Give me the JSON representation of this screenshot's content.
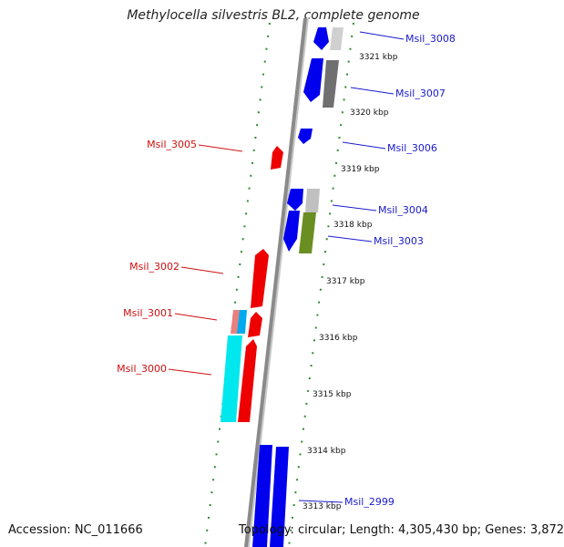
{
  "title": "Methylocella silvestris BL2, complete genome",
  "accession": "Accession: NC_011666",
  "summary": "Topology: circular; Length: 4,305,430 bp; Genes: 3,872",
  "colors": {
    "backbone": "#8a8a8a",
    "forward_strand": "#0000ee",
    "reverse_strand": "#ee0000",
    "forward_label": "#1a1acc",
    "reverse_label": "#cc1111",
    "tick_dots": "#2e8b2e",
    "tick_label": "#111111"
  },
  "scale_ticks": [
    {
      "label": "3321 kbp"
    },
    {
      "label": "3320 kbp"
    },
    {
      "label": "3319 kbp"
    },
    {
      "label": "3318 kbp"
    },
    {
      "label": "3317 kbp"
    },
    {
      "label": "3316 kbp"
    },
    {
      "label": "3315 kbp"
    },
    {
      "label": "3314 kbp"
    },
    {
      "label": "3313 kbp"
    }
  ],
  "gene_labels": [
    {
      "label": "Msil_3008",
      "strand": "forward"
    },
    {
      "label": "Msil_3007",
      "strand": "forward"
    },
    {
      "label": "Msil_3006",
      "strand": "forward"
    },
    {
      "label": "Msil_3004",
      "strand": "forward"
    },
    {
      "label": "Msil_3003",
      "strand": "forward"
    },
    {
      "label": "Msil_2999",
      "strand": "forward"
    },
    {
      "label": "Msil_3005",
      "strand": "reverse"
    },
    {
      "label": "Msil_3002",
      "strand": "reverse"
    },
    {
      "label": "Msil_3001",
      "strand": "reverse"
    },
    {
      "label": "Msil_3000",
      "strand": "reverse"
    }
  ]
}
